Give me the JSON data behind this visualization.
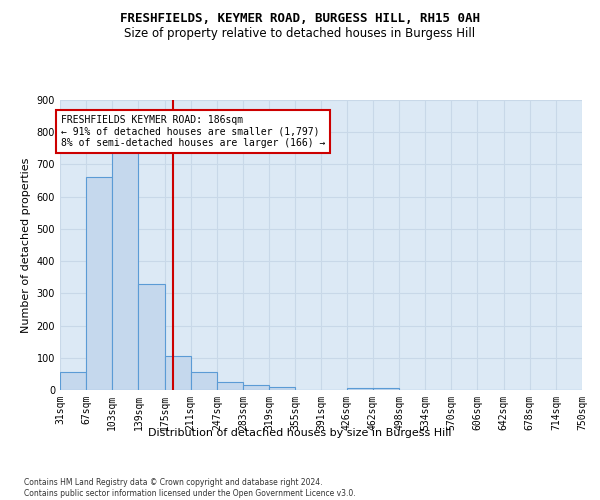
{
  "title_line1": "FRESHFIELDS, KEYMER ROAD, BURGESS HILL, RH15 0AH",
  "title_line2": "Size of property relative to detached houses in Burgess Hill",
  "xlabel": "Distribution of detached houses by size in Burgess Hill",
  "ylabel": "Number of detached properties",
  "footnote": "Contains HM Land Registry data © Crown copyright and database right 2024.\nContains public sector information licensed under the Open Government Licence v3.0.",
  "bin_labels": [
    "31sqm",
    "67sqm",
    "103sqm",
    "139sqm",
    "175sqm",
    "211sqm",
    "247sqm",
    "283sqm",
    "319sqm",
    "355sqm",
    "391sqm",
    "426sqm",
    "462sqm",
    "498sqm",
    "534sqm",
    "570sqm",
    "606sqm",
    "642sqm",
    "678sqm",
    "714sqm",
    "750sqm"
  ],
  "bin_edges": [
    31,
    67,
    103,
    139,
    175,
    211,
    247,
    283,
    319,
    355,
    391,
    426,
    462,
    498,
    534,
    570,
    606,
    642,
    678,
    714,
    750
  ],
  "bar_heights": [
    55,
    660,
    740,
    330,
    105,
    55,
    25,
    15,
    10,
    0,
    0,
    7,
    7,
    0,
    0,
    0,
    0,
    0,
    0,
    0
  ],
  "bar_color": "#c5d8ed",
  "bar_edge_color": "#5b9bd5",
  "vline_x": 186,
  "vline_color": "#cc0000",
  "annotation_text": "FRESHFIELDS KEYMER ROAD: 186sqm\n← 91% of detached houses are smaller (1,797)\n8% of semi-detached houses are larger (166) →",
  "annotation_box_color": "#ffffff",
  "annotation_box_edge": "#cc0000",
  "ylim": [
    0,
    900
  ],
  "yticks": [
    0,
    100,
    200,
    300,
    400,
    500,
    600,
    700,
    800,
    900
  ],
  "grid_color": "#c8d8e8",
  "bg_color": "#dce9f5",
  "title_fontsize": 9,
  "subtitle_fontsize": 8.5,
  "axis_label_fontsize": 8,
  "tick_fontsize": 7,
  "annotation_fontsize": 7,
  "footnote_fontsize": 5.5
}
